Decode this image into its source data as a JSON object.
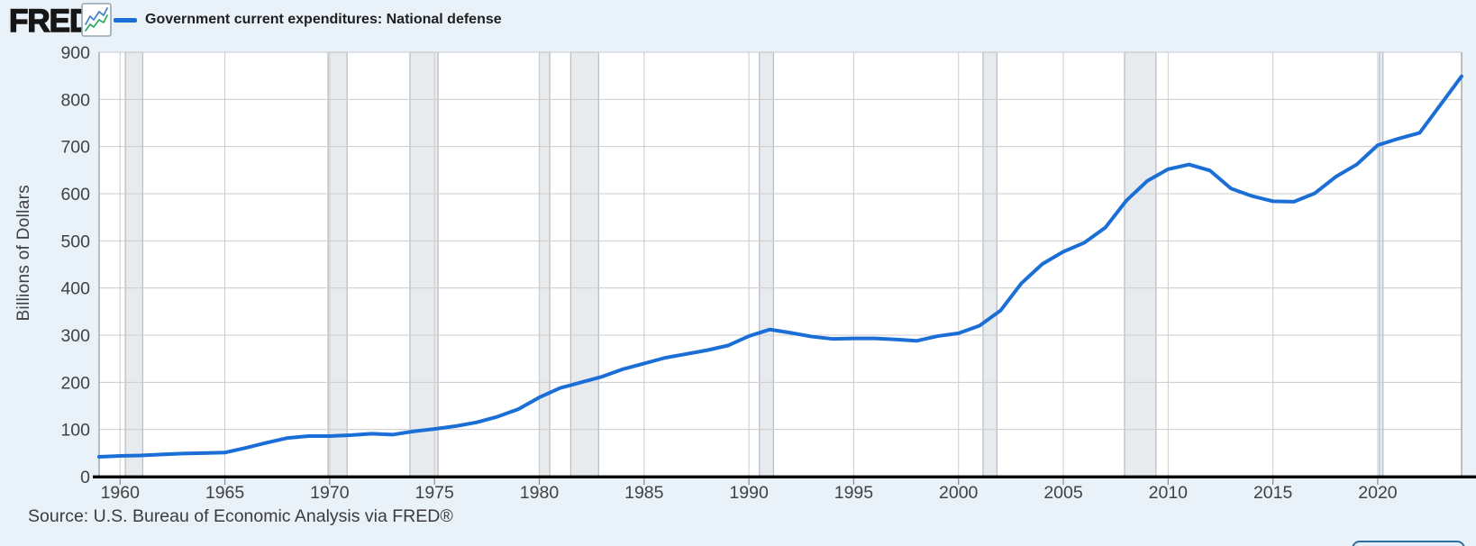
{
  "header": {
    "logo_text": "FRED",
    "registered_mark": "®",
    "legend": {
      "label": "Government current expenditures: National defense",
      "line_color": "#1b6ed6"
    },
    "icon": {
      "name": "fred-chart-icon",
      "line1_color": "#4285c8",
      "line2_color": "#2eab62"
    }
  },
  "chart_data": {
    "type": "line",
    "title": "Government current expenditures: National defense",
    "xlabel": "",
    "ylabel": "Billions of Dollars",
    "xlim": [
      1959,
      2024
    ],
    "ylim": [
      0,
      900
    ],
    "grid": true,
    "legend_position": "top-left",
    "line_color": "#1b6ed6",
    "x_ticks": [
      1960,
      1965,
      1970,
      1975,
      1980,
      1985,
      1990,
      1995,
      2000,
      2005,
      2010,
      2015,
      2020
    ],
    "y_ticks": [
      0,
      100,
      200,
      300,
      400,
      500,
      600,
      700,
      800,
      900
    ],
    "x": [
      1959,
      1960,
      1961,
      1962,
      1963,
      1964,
      1965,
      1966,
      1967,
      1968,
      1969,
      1970,
      1971,
      1972,
      1973,
      1974,
      1975,
      1976,
      1977,
      1978,
      1979,
      1980,
      1981,
      1982,
      1983,
      1984,
      1985,
      1986,
      1987,
      1988,
      1989,
      1990,
      1991,
      1992,
      1993,
      1994,
      1995,
      1996,
      1997,
      1998,
      1999,
      2000,
      2001,
      2002,
      2003,
      2004,
      2005,
      2006,
      2007,
      2008,
      2009,
      2010,
      2011,
      2012,
      2013,
      2014,
      2015,
      2016,
      2017,
      2018,
      2019,
      2020,
      2021,
      2022,
      2023,
      2024
    ],
    "values": [
      42,
      44,
      45,
      47,
      49,
      50,
      51,
      61,
      72,
      82,
      86,
      86,
      88,
      91,
      89,
      96,
      101,
      107,
      115,
      127,
      143,
      168,
      188,
      200,
      212,
      228,
      240,
      252,
      260,
      268,
      278,
      298,
      312,
      305,
      297,
      292,
      293,
      293,
      291,
      288,
      298,
      304,
      320,
      352,
      410,
      451,
      477,
      496,
      528,
      585,
      627,
      652,
      662,
      649,
      611,
      595,
      584,
      583,
      601,
      636,
      662,
      703,
      717,
      729,
      789,
      849
    ],
    "recession_bands": [
      [
        1960.25,
        1961.08
      ],
      [
        1969.92,
        1970.83
      ],
      [
        1973.83,
        1975.17
      ],
      [
        1980.0,
        1980.5
      ],
      [
        1981.5,
        1982.83
      ],
      [
        1990.5,
        1991.17
      ],
      [
        2001.17,
        2001.83
      ],
      [
        2007.92,
        2009.42
      ],
      [
        2020.08,
        2020.25
      ]
    ],
    "colors": {
      "plot_background": "#ffffff",
      "page_background": "#e9f1f9",
      "gridline": "#cccccc",
      "plot_border": "#999999",
      "recession_fill": "#e7ebee",
      "recession_edge": "#b4bbc3",
      "axis_line": "#000000",
      "tick_text": "#424242"
    }
  },
  "footer": {
    "source": "Source: U.S. Bureau of Economic Analysis via FRED®"
  }
}
